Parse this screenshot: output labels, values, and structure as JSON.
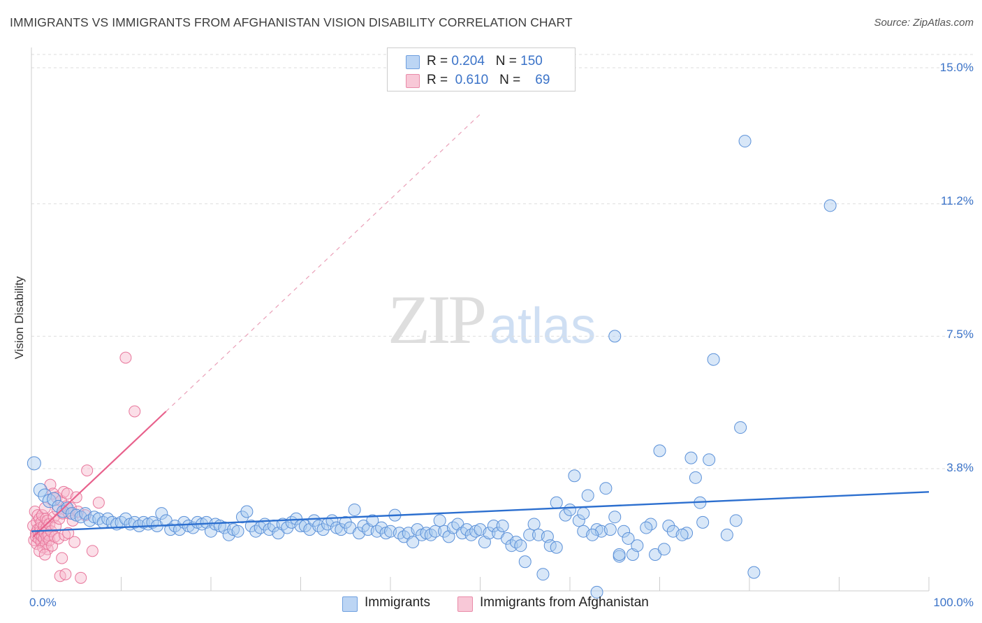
{
  "title": "IMMIGRANTS VS IMMIGRANTS FROM AFGHANISTAN VISION DISABILITY CORRELATION CHART",
  "source": "Source: ZipAtlas.com",
  "watermark": {
    "part1": "ZIP",
    "part2": "atlas"
  },
  "legend": {
    "rows": [
      {
        "r_label": "R =",
        "r_value": "0.204",
        "n_label": "N =",
        "n_value": "150"
      },
      {
        "r_label": "R =",
        "r_value": "0.610",
        "n_label": "N =",
        "n_value": "69"
      }
    ]
  },
  "colors": {
    "blue_fill": "#a9c9f0",
    "blue_stroke": "#5a90d8",
    "blue_line": "#2c6fcf",
    "pink_fill": "#f6b8cb",
    "pink_stroke": "#e8779c",
    "pink_line": "#e8618c",
    "grid": "#dddddd",
    "axis_text": "#3b73c8"
  },
  "chart_data": {
    "type": "scatter",
    "title": "IMMIGRANTS VS IMMIGRANTS FROM AFGHANISTAN VISION DISABILITY CORRELATION CHART",
    "xlabel": "",
    "ylabel": "Vision Disability",
    "xlim": [
      0,
      100
    ],
    "ylim": [
      0,
      15.4
    ],
    "x_ticks": [
      "0.0%",
      "100.0%"
    ],
    "y_ticks": [
      {
        "value": 3.8,
        "label": "3.8%"
      },
      {
        "value": 7.5,
        "label": "7.5%"
      },
      {
        "value": 11.2,
        "label": "11.2%"
      },
      {
        "value": 15.0,
        "label": "15.0%"
      }
    ],
    "legend_position": "bottom",
    "series": [
      {
        "name": "Immigrants",
        "r": 0.204,
        "n": 150,
        "trend": {
          "x0": 0,
          "y0": 2.05,
          "x1": 100,
          "y1": 3.15,
          "dashed_extension": false
        },
        "points": [
          [
            0.3,
            3.95
          ],
          [
            1.0,
            3.2
          ],
          [
            1.5,
            3.05
          ],
          [
            2.0,
            2.9
          ],
          [
            2.5,
            2.95
          ],
          [
            3.0,
            2.75
          ],
          [
            3.5,
            2.6
          ],
          [
            4.0,
            2.7
          ],
          [
            4.5,
            2.55
          ],
          [
            5.0,
            2.5
          ],
          [
            5.5,
            2.45
          ],
          [
            6.0,
            2.55
          ],
          [
            6.5,
            2.35
          ],
          [
            7.0,
            2.45
          ],
          [
            7.5,
            2.4
          ],
          [
            8.0,
            2.3
          ],
          [
            8.5,
            2.4
          ],
          [
            9.0,
            2.3
          ],
          [
            9.5,
            2.25
          ],
          [
            10.0,
            2.3
          ],
          [
            10.5,
            2.4
          ],
          [
            11.0,
            2.25
          ],
          [
            11.5,
            2.3
          ],
          [
            12.0,
            2.2
          ],
          [
            12.5,
            2.3
          ],
          [
            13.0,
            2.25
          ],
          [
            13.5,
            2.3
          ],
          [
            14.0,
            2.2
          ],
          [
            14.5,
            2.55
          ],
          [
            15.0,
            2.35
          ],
          [
            15.5,
            2.1
          ],
          [
            16.0,
            2.2
          ],
          [
            16.5,
            2.1
          ],
          [
            17.0,
            2.3
          ],
          [
            17.5,
            2.2
          ],
          [
            18.0,
            2.15
          ],
          [
            18.5,
            2.3
          ],
          [
            19.0,
            2.25
          ],
          [
            19.5,
            2.3
          ],
          [
            20.0,
            2.05
          ],
          [
            20.5,
            2.25
          ],
          [
            21.0,
            2.2
          ],
          [
            21.5,
            2.15
          ],
          [
            22.0,
            1.95
          ],
          [
            22.5,
            2.1
          ],
          [
            23.0,
            2.05
          ],
          [
            23.5,
            2.45
          ],
          [
            24.0,
            2.6
          ],
          [
            24.5,
            2.2
          ],
          [
            25.0,
            2.05
          ],
          [
            25.5,
            2.15
          ],
          [
            26.0,
            2.25
          ],
          [
            26.5,
            2.1
          ],
          [
            27.0,
            2.2
          ],
          [
            27.5,
            2.0
          ],
          [
            28.0,
            2.25
          ],
          [
            28.5,
            2.15
          ],
          [
            29.0,
            2.3
          ],
          [
            29.5,
            2.4
          ],
          [
            30.0,
            2.2
          ],
          [
            30.5,
            2.2
          ],
          [
            31.0,
            2.1
          ],
          [
            31.5,
            2.35
          ],
          [
            32.0,
            2.2
          ],
          [
            32.5,
            2.1
          ],
          [
            33.0,
            2.25
          ],
          [
            33.5,
            2.35
          ],
          [
            34.0,
            2.15
          ],
          [
            34.5,
            2.1
          ],
          [
            35.0,
            2.3
          ],
          [
            35.5,
            2.15
          ],
          [
            36.0,
            2.65
          ],
          [
            36.5,
            2.0
          ],
          [
            37.0,
            2.2
          ],
          [
            37.5,
            2.1
          ],
          [
            38.0,
            2.35
          ],
          [
            38.5,
            2.05
          ],
          [
            39.0,
            2.15
          ],
          [
            39.5,
            2.0
          ],
          [
            40.0,
            2.05
          ],
          [
            40.5,
            2.5
          ],
          [
            41.0,
            2.0
          ],
          [
            41.5,
            1.9
          ],
          [
            42.0,
            2.0
          ],
          [
            42.5,
            1.75
          ],
          [
            43.0,
            2.1
          ],
          [
            43.5,
            1.95
          ],
          [
            44.0,
            2.0
          ],
          [
            44.5,
            1.95
          ],
          [
            45.0,
            2.05
          ],
          [
            45.5,
            2.35
          ],
          [
            46.0,
            2.05
          ],
          [
            46.5,
            1.9
          ],
          [
            47.0,
            2.15
          ],
          [
            47.5,
            2.25
          ],
          [
            48.0,
            2.0
          ],
          [
            48.5,
            2.1
          ],
          [
            49.0,
            1.95
          ],
          [
            49.5,
            2.05
          ],
          [
            50.0,
            2.1
          ],
          [
            50.5,
            1.75
          ],
          [
            51.0,
            2.0
          ],
          [
            51.5,
            2.2
          ],
          [
            52.0,
            2.0
          ],
          [
            52.5,
            2.2
          ],
          [
            53.0,
            1.85
          ],
          [
            53.5,
            1.65
          ],
          [
            54.0,
            1.75
          ],
          [
            54.5,
            1.65
          ],
          [
            55.0,
            1.2
          ],
          [
            55.5,
            1.95
          ],
          [
            56.0,
            2.25
          ],
          [
            56.5,
            1.95
          ],
          [
            57.0,
            0.85
          ],
          [
            57.5,
            1.9
          ],
          [
            57.8,
            1.65
          ],
          [
            58.5,
            1.6
          ],
          [
            58.5,
            2.85
          ],
          [
            59.5,
            2.5
          ],
          [
            60.0,
            2.65
          ],
          [
            60.5,
            3.6
          ],
          [
            61.0,
            2.35
          ],
          [
            61.5,
            2.05
          ],
          [
            62.0,
            3.05
          ],
          [
            63.0,
            2.1
          ],
          [
            63.5,
            2.05
          ],
          [
            64.0,
            3.25
          ],
          [
            64.5,
            2.1
          ],
          [
            65.0,
            2.45
          ],
          [
            65.5,
            1.35
          ],
          [
            65.0,
            7.5
          ],
          [
            65.5,
            1.4
          ],
          [
            66.0,
            2.05
          ],
          [
            66.5,
            1.85
          ],
          [
            67.0,
            1.4
          ],
          [
            69.0,
            2.25
          ],
          [
            69.5,
            1.4
          ],
          [
            70.0,
            4.3
          ],
          [
            70.5,
            1.55
          ],
          [
            71.0,
            2.2
          ],
          [
            71.5,
            2.05
          ],
          [
            73.0,
            2.0
          ],
          [
            73.5,
            4.1
          ],
          [
            74.0,
            3.55
          ],
          [
            74.5,
            2.85
          ],
          [
            74.8,
            2.3
          ],
          [
            75.5,
            4.05
          ],
          [
            76.0,
            6.85
          ],
          [
            79.0,
            4.95
          ],
          [
            79.5,
            12.95
          ],
          [
            80.5,
            0.9
          ],
          [
            89.0,
            11.15
          ],
          [
            63.0,
            0.35
          ],
          [
            61.5,
            2.55
          ],
          [
            67.5,
            1.65
          ],
          [
            77.5,
            1.95
          ],
          [
            78.5,
            2.35
          ],
          [
            68.5,
            2.15
          ],
          [
            72.5,
            1.95
          ],
          [
            62.5,
            1.95
          ]
        ]
      },
      {
        "name": "Immigrants from Afghanistan",
        "r": 0.61,
        "n": 69,
        "trend": {
          "x0": 0.2,
          "y0": 1.9,
          "x1": 15.0,
          "y1": 5.4,
          "dash_x1": 50.0,
          "dash_y1": 13.7
        },
        "points": [
          [
            0.2,
            2.2
          ],
          [
            0.3,
            1.8
          ],
          [
            0.4,
            2.6
          ],
          [
            0.5,
            2.0
          ],
          [
            0.5,
            1.9
          ],
          [
            0.6,
            2.3
          ],
          [
            0.6,
            1.7
          ],
          [
            0.7,
            2.1
          ],
          [
            0.7,
            2.5
          ],
          [
            0.8,
            1.85
          ],
          [
            0.8,
            2.0
          ],
          [
            0.9,
            2.4
          ],
          [
            1.0,
            1.95
          ],
          [
            1.0,
            2.15
          ],
          [
            1.1,
            1.75
          ],
          [
            1.1,
            2.3
          ],
          [
            1.2,
            1.9
          ],
          [
            1.2,
            2.5
          ],
          [
            1.3,
            2.05
          ],
          [
            1.3,
            1.6
          ],
          [
            1.4,
            2.2
          ],
          [
            1.4,
            1.85
          ],
          [
            1.5,
            2.0
          ],
          [
            1.5,
            2.7
          ],
          [
            1.6,
            1.7
          ],
          [
            1.6,
            2.4
          ],
          [
            1.7,
            1.9
          ],
          [
            1.7,
            2.15
          ],
          [
            1.8,
            1.55
          ],
          [
            1.8,
            2.35
          ],
          [
            1.9,
            1.95
          ],
          [
            2.0,
            2.25
          ],
          [
            2.0,
            1.8
          ],
          [
            2.1,
            3.35
          ],
          [
            2.2,
            2.05
          ],
          [
            2.3,
            1.65
          ],
          [
            2.4,
            3.1
          ],
          [
            2.5,
            2.45
          ],
          [
            2.6,
            1.9
          ],
          [
            2.7,
            2.2
          ],
          [
            2.8,
            3.0
          ],
          [
            2.9,
            2.65
          ],
          [
            3.0,
            1.85
          ],
          [
            3.1,
            2.4
          ],
          [
            3.2,
            0.8
          ],
          [
            3.3,
            2.9
          ],
          [
            3.4,
            1.3
          ],
          [
            3.5,
            2.55
          ],
          [
            3.6,
            3.15
          ],
          [
            3.7,
            1.95
          ],
          [
            3.8,
            0.85
          ],
          [
            3.9,
            2.75
          ],
          [
            4.0,
            3.1
          ],
          [
            4.1,
            2.0
          ],
          [
            4.2,
            2.55
          ],
          [
            4.4,
            2.7
          ],
          [
            4.6,
            2.35
          ],
          [
            4.8,
            1.75
          ],
          [
            5.0,
            3.0
          ],
          [
            5.2,
            2.6
          ],
          [
            5.5,
            0.75
          ],
          [
            6.0,
            2.5
          ],
          [
            6.2,
            3.75
          ],
          [
            6.8,
            1.5
          ],
          [
            7.5,
            2.85
          ],
          [
            10.5,
            6.9
          ],
          [
            11.5,
            5.4
          ],
          [
            0.9,
            1.5
          ],
          [
            1.5,
            1.4
          ]
        ]
      }
    ]
  },
  "axis_labels": {
    "y_title": "Vision Disability",
    "x_min": "0.0%",
    "x_max": "100.0%",
    "y_ticks": [
      "3.8%",
      "7.5%",
      "11.2%",
      "15.0%"
    ]
  }
}
